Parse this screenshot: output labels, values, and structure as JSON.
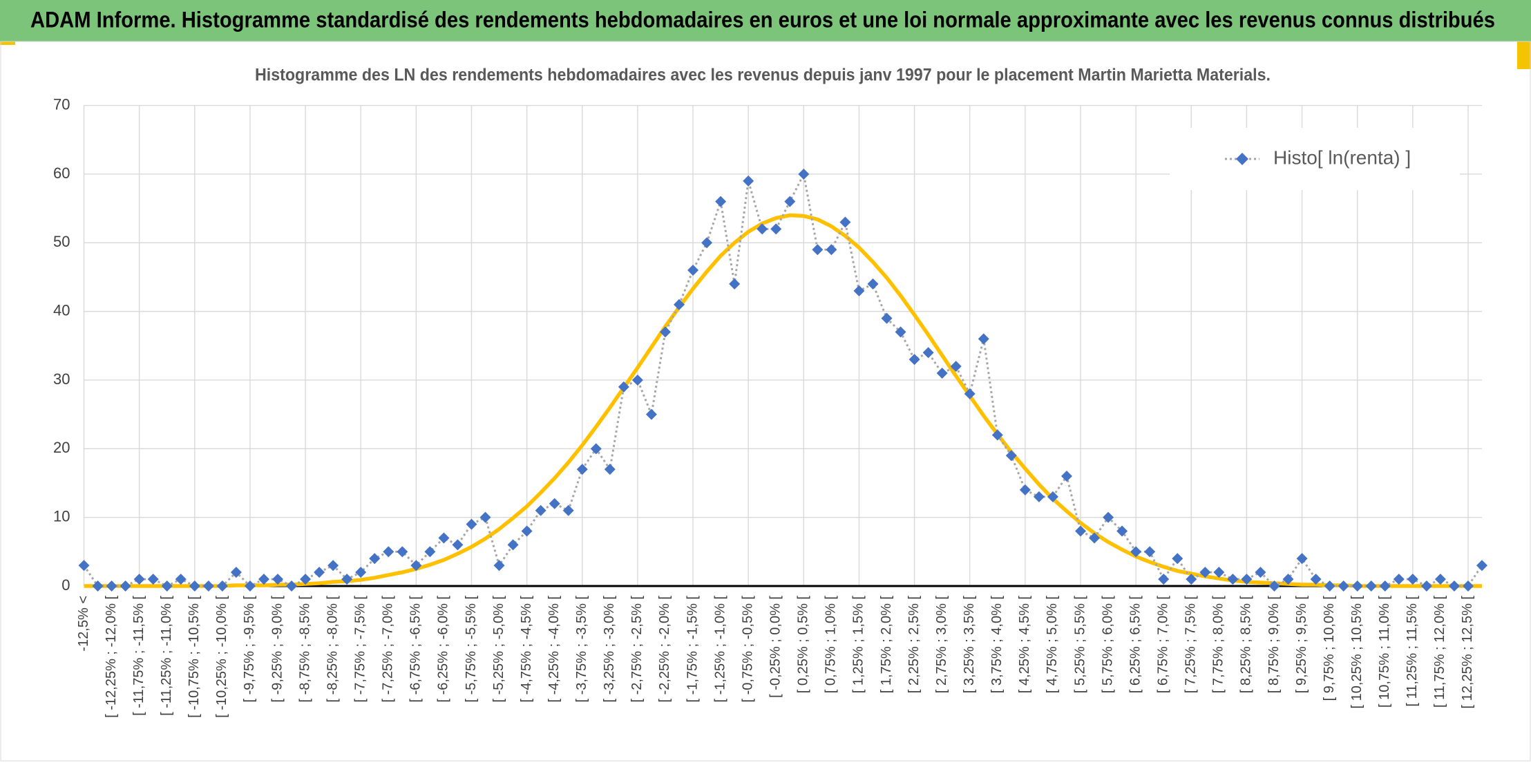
{
  "header": {
    "title": "ADAM Informe. Histogramme standardisé des rendements hebdomadaires en euros et une loi normale approximante avec les revenus connus distribués"
  },
  "chart_data": {
    "type": "line",
    "title": "Histogramme des LN des rendements hebdomadaires avec les revenus depuis janv 1997 pour le placement Martin Marietta Materials.",
    "categories": [
      "-12,5% <",
      null,
      "[ -12,25% ; -12,0% [",
      null,
      "[ -11,75% ; -11,5% [",
      null,
      "[ -11,25% ; -11,0% [",
      null,
      "[ -10,75% ; -10,5% [",
      null,
      "[ -10,25% ; -10,0% [",
      null,
      "[ -9,75% ; -9,5% [",
      null,
      "[ -9,25% ; -9,0% [",
      null,
      "[ -8,75% ; -8,5% [",
      null,
      "[ -8,25% ; -8,0% [",
      null,
      "[ -7,75% ; -7,5% [",
      null,
      "[ -7,25% ; -7,0% [",
      null,
      "[ -6,75% ; -6,5% [",
      null,
      "[ -6,25% ; -6,0% [",
      null,
      "[ -5,75% ; -5,5% [",
      null,
      "[ -5,25% ; -5,0% [",
      null,
      "[ -4,75% ; -4,5% [",
      null,
      "[ -4,25% ; -4,0% [",
      null,
      "[ -3,75% ; -3,5% [",
      null,
      "[ -3,25% ; -3,0% [",
      null,
      "[ -2,75% ; -2,5% [",
      null,
      "[ -2,25% ; -2,0% [",
      null,
      "[ -1,75% ; -1,5% [",
      null,
      "[ -1,25% ; -1,0% [",
      null,
      "[ -0,75% ; -0,5% [",
      null,
      "[ -0,25% ; 0,0% [",
      null,
      "[ 0,25% ; 0,5% [",
      null,
      "[ 0,75% ; 1,0% [",
      null,
      "[ 1,25% ; 1,5% [",
      null,
      "[ 1,75% ; 2,0% [",
      null,
      "[ 2,25% ; 2,5% [",
      null,
      "[ 2,75% ; 3,0% [",
      null,
      "[ 3,25% ; 3,5% [",
      null,
      "[ 3,75% ; 4,0% [",
      null,
      "[ 4,25% ; 4,5% [",
      null,
      "[ 4,75% ; 5,0% [",
      null,
      "[ 5,25% ; 5,5% [",
      null,
      "[ 5,75% ; 6,0% [",
      null,
      "[ 6,25% ; 6,5% [",
      null,
      "[ 6,75% ; 7,0% [",
      null,
      "[ 7,25% ; 7,5% [",
      null,
      "[ 7,75% ; 8,0% [",
      null,
      "[ 8,25% ; 8,5% [",
      null,
      "[ 8,75% ; 9,0% [",
      null,
      "[ 9,25% ; 9,5% [",
      null,
      "[ 9,75% ; 10,0% [",
      null,
      "[ 10,25% ; 10,5% [",
      null,
      "[ 10,75% ; 11,0% [",
      null,
      "[ 11,25% ; 11,5% [",
      null,
      "[ 11,75% ; 12,0% [",
      null,
      "[ 12,25% ; 12,5% [",
      null
    ],
    "series": [
      {
        "name": "Histo[ ln(renta) ]",
        "color": "#4472c4",
        "line_color": "#a6a6a6",
        "marker": "diamond",
        "line_style": "dotted",
        "values": [
          3,
          0,
          0,
          0,
          1,
          1,
          0,
          1,
          0,
          0,
          0,
          2,
          0,
          1,
          1,
          0,
          1,
          2,
          3,
          1,
          2,
          4,
          5,
          5,
          3,
          5,
          7,
          6,
          9,
          10,
          3,
          6,
          8,
          11,
          12,
          11,
          17,
          20,
          17,
          29,
          30,
          25,
          37,
          41,
          46,
          50,
          56,
          44,
          59,
          52,
          52,
          56,
          60,
          49,
          49,
          53,
          43,
          44,
          39,
          37,
          33,
          34,
          31,
          32,
          28,
          36,
          22,
          19,
          14,
          13,
          13,
          16,
          8,
          7,
          10,
          8,
          5,
          5,
          1,
          4,
          1,
          2,
          2,
          1,
          1,
          2,
          0,
          1,
          4,
          1,
          0,
          0,
          0,
          0,
          0,
          1,
          1,
          0,
          1,
          0,
          0,
          3
        ]
      },
      {
        "color": "#ffc000",
        "marker": "none",
        "line_style": "solid",
        "values": [
          0,
          0,
          0,
          0,
          0,
          0,
          0,
          0,
          0,
          0,
          0,
          0.1,
          0.1,
          0.1,
          0.2,
          0.2,
          0.3,
          0.4,
          0.6,
          0.7,
          0.9,
          1.2,
          1.6,
          2.0,
          2.5,
          3.1,
          3.8,
          4.7,
          5.7,
          6.9,
          8.3,
          9.9,
          11.6,
          13.6,
          15.7,
          18.0,
          20.5,
          23.2,
          26.0,
          28.9,
          31.8,
          34.8,
          37.8,
          40.6,
          43.3,
          45.8,
          48.1,
          50.0,
          51.6,
          52.8,
          53.6,
          54.0,
          53.9,
          53.4,
          52.4,
          51.0,
          49.3,
          47.2,
          44.9,
          42.3,
          39.5,
          36.6,
          33.6,
          30.6,
          27.7,
          24.8,
          22.1,
          19.5,
          17.1,
          14.8,
          12.7,
          10.9,
          9.2,
          7.7,
          6.4,
          5.3,
          4.3,
          3.5,
          2.8,
          2.2,
          1.8,
          1.4,
          1.1,
          0.8,
          0.6,
          0.5,
          0.4,
          0.3,
          0.2,
          0.2,
          0.1,
          0.1,
          0,
          0,
          0,
          0,
          0,
          0,
          0,
          0,
          0,
          0
        ]
      }
    ],
    "ylim": [
      0,
      70
    ],
    "yticks": [
      0,
      10,
      20,
      30,
      40,
      50,
      60,
      70
    ],
    "grid": true,
    "legend": "upper right"
  }
}
